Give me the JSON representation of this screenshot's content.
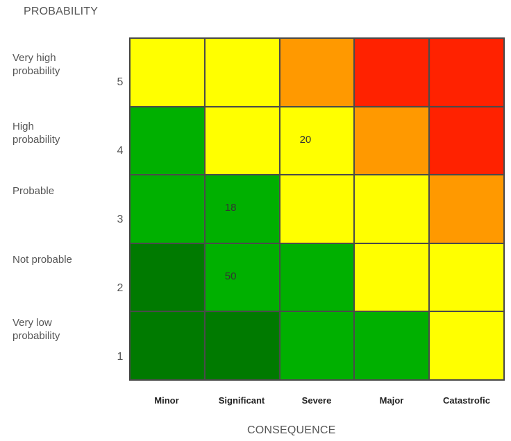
{
  "chart_data": {
    "type": "heatmap",
    "ylabel": "PROBABILITY",
    "xlabel": "CONSEQUENCE",
    "columns": [
      "Minor",
      "Significant",
      "Severe",
      "Major",
      "Catastrofic"
    ],
    "rows": [
      {
        "level": "5",
        "label": "Very high\nprobability"
      },
      {
        "level": "4",
        "label": "High\nprobability"
      },
      {
        "level": "3",
        "label": "Probable"
      },
      {
        "level": "2",
        "label": "Not probable"
      },
      {
        "level": "1",
        "label": "Very low\nprobability"
      }
    ],
    "cells": [
      [
        "yellow",
        "yellow",
        "orange",
        "red",
        "red"
      ],
      [
        "green",
        "yellow",
        "yellow",
        "orange",
        "red"
      ],
      [
        "green",
        "green",
        "yellow",
        "yellow",
        "orange"
      ],
      [
        "dark-green",
        "green",
        "green",
        "yellow",
        "yellow"
      ],
      [
        "dark-green",
        "dark-green",
        "green",
        "green",
        "yellow"
      ]
    ],
    "values": [
      [
        "",
        "",
        "",
        "",
        ""
      ],
      [
        "",
        "",
        "20",
        "",
        ""
      ],
      [
        "",
        "18",
        "",
        "",
        ""
      ],
      [
        "",
        "50",
        "",
        "",
        ""
      ],
      [
        "",
        "",
        "",
        "",
        ""
      ]
    ],
    "colors": {
      "yellow": "#ffff00",
      "orange": "#ff9900",
      "red": "#ff2200",
      "green": "#00b000",
      "dark-green": "#007a00"
    }
  }
}
